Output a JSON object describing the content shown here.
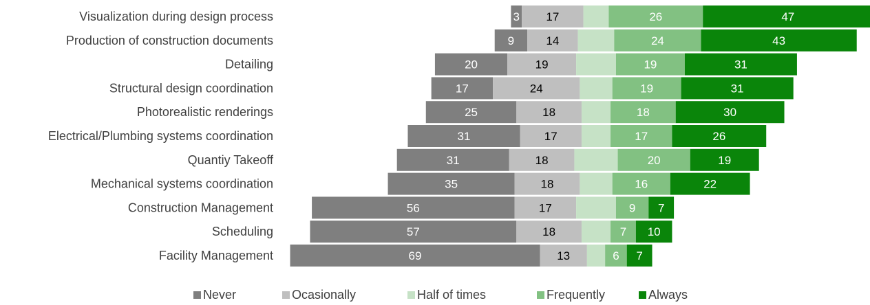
{
  "colors": {
    "never": "#7f7f7f",
    "occasionally": "#bfbfbf",
    "half": "#c6e2c6",
    "frequently": "#82c182",
    "always": "#0a850a",
    "light_text": "#ffffff",
    "dark_text": "#000000"
  },
  "chart_data": {
    "type": "bar",
    "orientation": "horizontal",
    "stacked": true,
    "diverging": true,
    "legend_placement": "bottom",
    "grid": false,
    "categories": [
      "Visualization during design process",
      "Production of construction documents",
      "Detailing",
      "Structural design coordination",
      "Photorealistic renderings",
      "Electrical/Plumbing systems coordination",
      "Quantiy Takeoff",
      "Mechanical systems coordination",
      "Construction Management",
      "Scheduling",
      "Facility Management"
    ],
    "series": [
      {
        "name": "Never",
        "color_key": "never",
        "text_key": "light_text",
        "values": [
          3,
          9,
          20,
          17,
          25,
          31,
          31,
          35,
          56,
          57,
          69
        ]
      },
      {
        "name": "Ocasionally",
        "color_key": "occasionally",
        "text_key": "dark_text",
        "values": [
          17,
          14,
          19,
          24,
          18,
          17,
          18,
          18,
          17,
          18,
          13
        ]
      },
      {
        "name": "Half of times",
        "color_key": "half",
        "text_key": "dark_text",
        "values": [
          7,
          10,
          11,
          9,
          8,
          8,
          12,
          9,
          11,
          8,
          5
        ],
        "labels_shown": false
      },
      {
        "name": "Frequently",
        "color_key": "frequently",
        "text_key": "light_text",
        "values": [
          26,
          24,
          19,
          19,
          18,
          17,
          20,
          16,
          9,
          7,
          6
        ]
      },
      {
        "name": "Always",
        "color_key": "always",
        "text_key": "light_text",
        "values": [
          47,
          43,
          31,
          31,
          30,
          26,
          19,
          22,
          7,
          10,
          7
        ]
      }
    ]
  }
}
